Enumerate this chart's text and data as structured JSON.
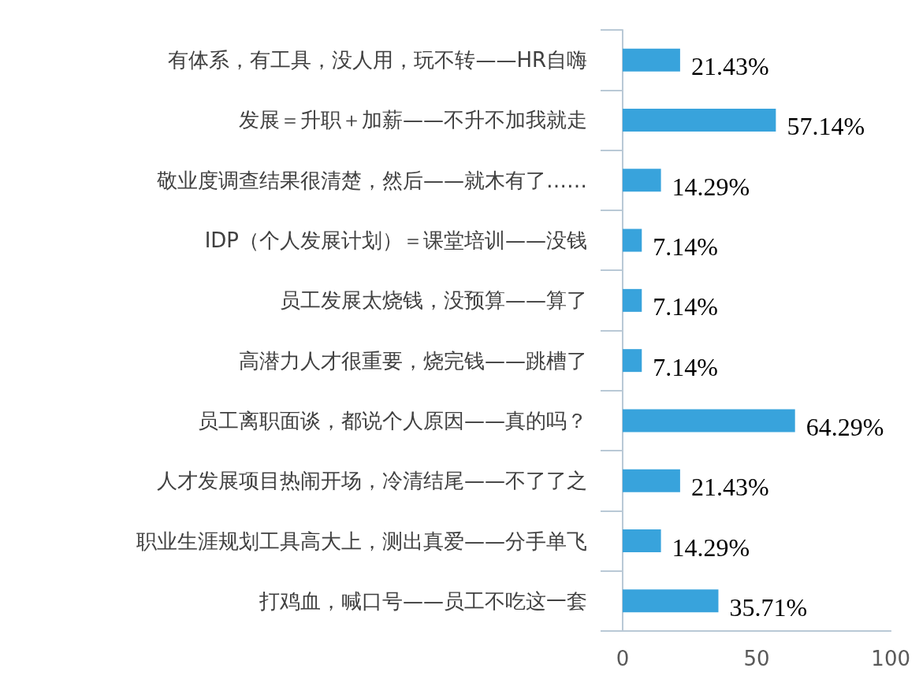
{
  "chart_data": {
    "type": "bar",
    "orientation": "horizontal",
    "categories": [
      "有体系，有工具，没人用，玩不转——HR自嗨",
      "发展＝升职＋加薪——不升不加我就走",
      "敬业度调查结果很清楚，然后——就木有了……",
      "IDP（个人发展计划）＝课堂培训——没钱",
      "员工发展太烧钱，没预算——算了",
      "高潜力人才很重要，烧完钱——跳槽了",
      "员工离职面谈，都说个人原因——真的吗？",
      "人才发展项目热闹开场，冷清结尾——不了了之",
      "职业生涯规划工具高大上，测出真爱——分手单飞",
      "打鸡血，喊口号——员工不吃这一套"
    ],
    "values": [
      21.43,
      57.14,
      14.29,
      7.14,
      7.14,
      7.14,
      64.29,
      21.43,
      14.29,
      35.71
    ],
    "value_labels": [
      "21.43%",
      "57.14%",
      "14.29%",
      "7.14%",
      "7.14%",
      "7.14%",
      "64.29%",
      "21.43%",
      "14.29%",
      "35.71%"
    ],
    "color": "#38a3dc",
    "xlim": [
      0,
      100
    ],
    "xticks": [
      0,
      50,
      100
    ],
    "grid": false
  }
}
